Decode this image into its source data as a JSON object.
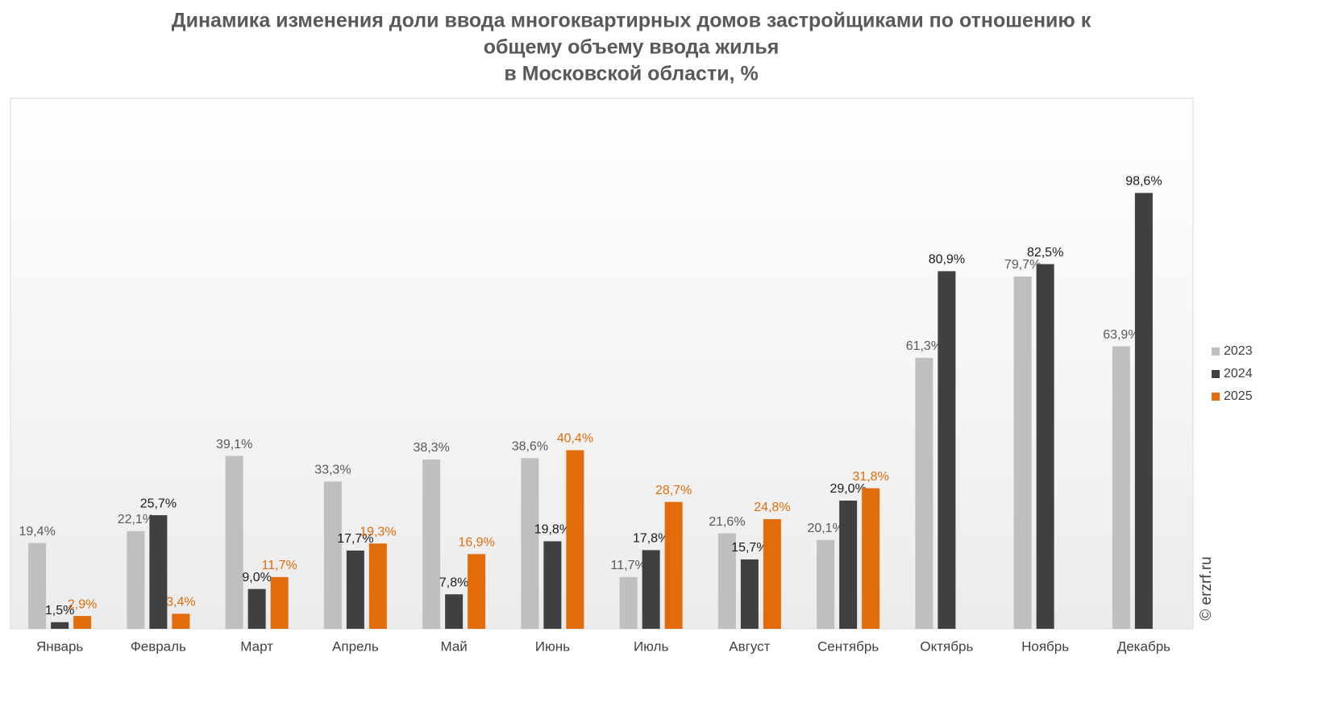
{
  "chart_data": {
    "type": "bar",
    "title": [
      "Динамика изменения доли ввода многоквартирных домов застройщиками по отношению к",
      "общему объему ввода жилья",
      "в Московской области, %"
    ],
    "watermark": "© erzrf.ru",
    "categories": [
      "Январь",
      "Февраль",
      "Март",
      "Апрель",
      "Май",
      "Июнь",
      "Июль",
      "Август",
      "Сентябрь",
      "Октябрь",
      "Ноябрь",
      "Декабрь"
    ],
    "ylim": [
      0,
      120
    ],
    "series": [
      {
        "name": "2023",
        "color": "#bfbfbf",
        "label_color": "#595959",
        "values": [
          19.4,
          22.1,
          39.1,
          33.3,
          38.3,
          38.6,
          11.7,
          21.6,
          20.1,
          61.3,
          79.7,
          63.9
        ],
        "value_labels": [
          "19,4%",
          "22,1%",
          "39,1%",
          "33,3%",
          "38,3%",
          "38,6%",
          "11,7%",
          "21,6%",
          "20,1%",
          "61,3%",
          "79,7%",
          "63,9%"
        ]
      },
      {
        "name": "2024",
        "color": "#404040",
        "label_color": "#1a1a1a",
        "values": [
          1.5,
          25.7,
          9.0,
          17.7,
          7.8,
          19.8,
          17.8,
          15.7,
          29.0,
          80.9,
          82.5,
          98.6
        ],
        "value_labels": [
          "1,5%",
          "25,7%",
          "9,0%",
          "17,7%",
          "7,8%",
          "19,8%",
          "17,8%",
          "15,7%",
          "29,0%",
          "80,9%",
          "82,5%",
          "98,6%"
        ]
      },
      {
        "name": "2025",
        "color": "#e36c0a",
        "label_color": "#e36c0a",
        "values": [
          2.9,
          3.4,
          11.7,
          19.3,
          16.9,
          40.4,
          28.7,
          24.8,
          31.8,
          null,
          null,
          null
        ],
        "value_labels": [
          "2,9%",
          "3,4%",
          "11,7%",
          "19,3%",
          "16,9%",
          "40,4%",
          "28,7%",
          "24,8%",
          "31,8%",
          null,
          null,
          null
        ]
      }
    ],
    "legend": "right"
  }
}
